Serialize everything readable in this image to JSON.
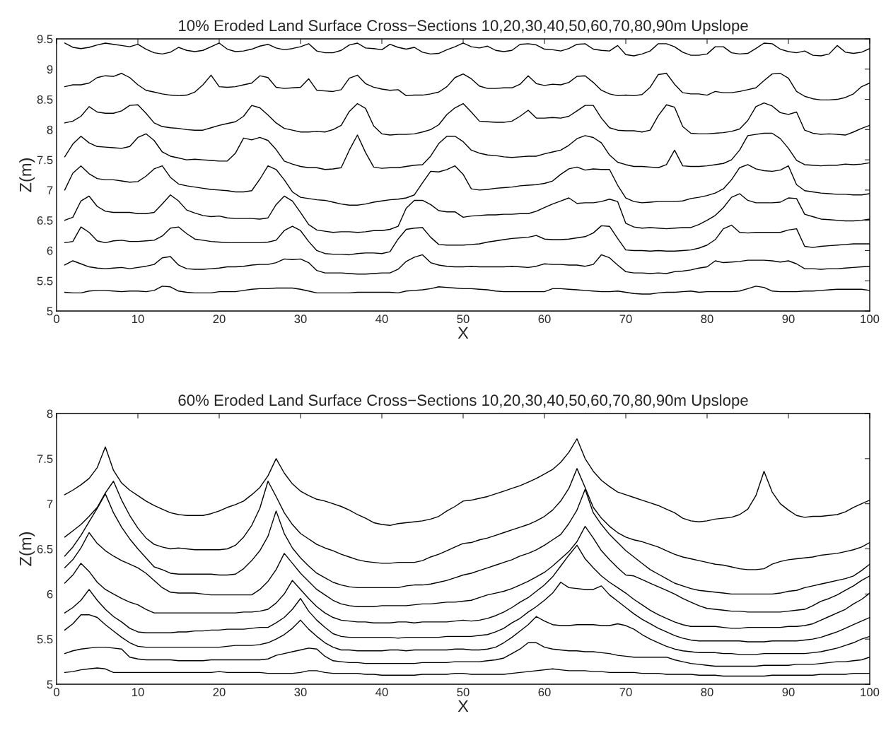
{
  "chart_data": [
    {
      "type": "line",
      "title": "10% Eroded Land Surface Cross−Sections 10,20,30,40,50,60,70,80,90m Upslope",
      "xlabel": "X",
      "ylabel": "Z(m)",
      "x": [
        1,
        2,
        3,
        4,
        5,
        6,
        7,
        8,
        9,
        10,
        11,
        12,
        13,
        14,
        15,
        16,
        17,
        18,
        19,
        20,
        21,
        22,
        23,
        24,
        25,
        26,
        27,
        28,
        29,
        30,
        31,
        32,
        33,
        34,
        35,
        36,
        37,
        38,
        39,
        40,
        41,
        42,
        43,
        44,
        45,
        46,
        47,
        48,
        49,
        50,
        51,
        52,
        53,
        54,
        55,
        56,
        57,
        58,
        59,
        60,
        61,
        62,
        63,
        64,
        65,
        66,
        67,
        68,
        69,
        70,
        71,
        72,
        73,
        74,
        75,
        76,
        77,
        78,
        79,
        80,
        81,
        82,
        83,
        84,
        85,
        86,
        87,
        88,
        89,
        90,
        91,
        92,
        93,
        94,
        95,
        96,
        97,
        98,
        99,
        100
      ],
      "xlim": [
        0,
        100
      ],
      "xticks": [
        0,
        10,
        20,
        30,
        40,
        50,
        60,
        70,
        80,
        90,
        100
      ],
      "ylim": [
        5,
        9.5
      ],
      "yticks": [
        5,
        5.5,
        6,
        6.5,
        7,
        7.5,
        8,
        8.5,
        9,
        9.5
      ],
      "grid": false,
      "marker": "none",
      "line_style": "solid",
      "series": [
        {
          "color": "#000000",
          "values": [
            9.43,
            9.36,
            9.34,
            9.36,
            9.4,
            9.43,
            9.41,
            9.39,
            9.37,
            9.41,
            9.33,
            9.27,
            9.25,
            9.28,
            9.36,
            9.31,
            9.29,
            9.31,
            9.37,
            9.43,
            9.33,
            9.29,
            9.3,
            9.33,
            9.38,
            9.41,
            9.35,
            9.32,
            9.34,
            9.37,
            9.42,
            9.3,
            9.27,
            9.27,
            9.31,
            9.4,
            9.43,
            9.35,
            9.34,
            9.32,
            9.41,
            9.36,
            9.33,
            9.36,
            9.28,
            9.25,
            9.26,
            9.32,
            9.37,
            9.43,
            9.37,
            9.35,
            9.38,
            9.31,
            9.29,
            9.31,
            9.41,
            9.42,
            9.4,
            9.33,
            9.32,
            9.3,
            9.34,
            9.41,
            9.42,
            9.33,
            9.31,
            9.3,
            9.39,
            9.24,
            9.22,
            9.25,
            9.3,
            9.42,
            9.42,
            9.37,
            9.28,
            9.23,
            9.23,
            9.25,
            9.37,
            9.37,
            9.27,
            9.25,
            9.26,
            9.34,
            9.43,
            9.42,
            9.33,
            9.29,
            9.27,
            9.3,
            9.23,
            9.22,
            9.25,
            9.39,
            9.28,
            9.26,
            9.28,
            9.34
          ]
        },
        {
          "color": "#000000",
          "values": [
            8.71,
            8.74,
            8.74,
            8.77,
            8.86,
            8.89,
            8.88,
            8.93,
            8.86,
            8.74,
            8.65,
            8.62,
            8.59,
            8.57,
            8.56,
            8.57,
            8.62,
            8.74,
            8.9,
            8.71,
            8.7,
            8.71,
            8.74,
            8.77,
            8.89,
            8.86,
            8.7,
            8.68,
            8.69,
            8.7,
            8.84,
            8.65,
            8.64,
            8.63,
            8.66,
            8.85,
            8.9,
            8.76,
            8.7,
            8.67,
            8.65,
            8.66,
            8.56,
            8.57,
            8.57,
            8.59,
            8.62,
            8.71,
            8.86,
            8.92,
            8.84,
            8.72,
            8.68,
            8.68,
            8.69,
            8.69,
            8.75,
            8.89,
            8.76,
            8.73,
            8.75,
            8.74,
            8.78,
            8.88,
            8.89,
            8.78,
            8.65,
            8.59,
            8.56,
            8.57,
            8.56,
            8.58,
            8.7,
            8.91,
            8.93,
            8.75,
            8.61,
            8.59,
            8.59,
            8.57,
            8.63,
            8.61,
            8.61,
            8.63,
            8.66,
            8.69,
            8.81,
            8.92,
            8.93,
            8.85,
            8.63,
            8.55,
            8.51,
            8.49,
            8.49,
            8.5,
            8.53,
            8.59,
            8.71,
            8.77
          ]
        },
        {
          "color": "#000000",
          "values": [
            8.11,
            8.14,
            8.22,
            8.38,
            8.29,
            8.27,
            8.27,
            8.31,
            8.4,
            8.41,
            8.27,
            8.11,
            8.05,
            8.03,
            8.02,
            8.0,
            7.99,
            7.99,
            8.03,
            8.07,
            8.1,
            8.13,
            8.22,
            8.4,
            8.36,
            8.24,
            8.11,
            8.02,
            7.99,
            7.96,
            7.96,
            7.97,
            7.96,
            8.0,
            8.07,
            8.3,
            8.43,
            8.35,
            8.06,
            7.93,
            7.91,
            7.92,
            7.92,
            7.93,
            7.96,
            8.0,
            8.08,
            8.25,
            8.36,
            8.43,
            8.29,
            8.14,
            8.13,
            8.12,
            8.12,
            8.14,
            8.22,
            8.32,
            8.19,
            8.19,
            8.2,
            8.19,
            8.22,
            8.31,
            8.4,
            8.4,
            8.19,
            8.03,
            7.99,
            7.98,
            7.98,
            7.96,
            7.99,
            8.23,
            8.41,
            8.37,
            8.05,
            7.94,
            7.93,
            7.93,
            7.94,
            7.95,
            7.97,
            8.01,
            8.15,
            8.38,
            8.44,
            8.39,
            8.28,
            8.25,
            8.29,
            7.99,
            7.94,
            7.92,
            7.93,
            7.92,
            7.91,
            7.96,
            8.02,
            8.07
          ]
        },
        {
          "color": "#000000",
          "values": [
            7.55,
            7.76,
            7.89,
            7.78,
            7.72,
            7.71,
            7.7,
            7.69,
            7.72,
            7.87,
            7.93,
            7.82,
            7.63,
            7.56,
            7.53,
            7.5,
            7.51,
            7.5,
            7.49,
            7.48,
            7.48,
            7.61,
            7.86,
            7.83,
            7.87,
            7.82,
            7.67,
            7.48,
            7.43,
            7.39,
            7.37,
            7.37,
            7.34,
            7.35,
            7.37,
            7.66,
            7.91,
            7.62,
            7.38,
            7.36,
            7.37,
            7.37,
            7.39,
            7.41,
            7.42,
            7.56,
            7.77,
            7.89,
            7.89,
            7.8,
            7.66,
            7.61,
            7.58,
            7.57,
            7.55,
            7.54,
            7.55,
            7.56,
            7.56,
            7.6,
            7.63,
            7.66,
            7.74,
            7.85,
            7.9,
            7.87,
            7.78,
            7.58,
            7.46,
            7.42,
            7.39,
            7.39,
            7.38,
            7.37,
            7.42,
            7.66,
            7.4,
            7.39,
            7.39,
            7.4,
            7.42,
            7.44,
            7.5,
            7.66,
            7.9,
            7.92,
            7.94,
            7.94,
            7.85,
            7.69,
            7.49,
            7.42,
            7.41,
            7.4,
            7.41,
            7.41,
            7.43,
            7.42,
            7.43,
            7.45
          ]
        },
        {
          "color": "#000000",
          "values": [
            7.0,
            7.28,
            7.4,
            7.27,
            7.19,
            7.17,
            7.17,
            7.15,
            7.13,
            7.14,
            7.23,
            7.35,
            7.4,
            7.21,
            7.1,
            7.07,
            7.05,
            7.03,
            7.01,
            7.0,
            6.99,
            6.97,
            6.97,
            6.99,
            7.18,
            7.4,
            7.34,
            7.17,
            6.97,
            6.88,
            6.86,
            6.84,
            6.83,
            6.8,
            6.77,
            6.75,
            6.75,
            6.77,
            6.8,
            6.82,
            6.84,
            6.85,
            6.87,
            6.92,
            7.12,
            7.31,
            7.3,
            7.34,
            7.4,
            7.26,
            7.02,
            7.0,
            7.01,
            7.03,
            7.04,
            7.05,
            7.07,
            7.08,
            7.09,
            7.11,
            7.15,
            7.26,
            7.35,
            7.38,
            7.33,
            7.35,
            7.34,
            7.34,
            7.08,
            6.87,
            6.81,
            6.79,
            6.8,
            6.81,
            6.81,
            6.81,
            6.82,
            6.86,
            6.88,
            6.91,
            6.95,
            7.02,
            7.17,
            7.37,
            7.42,
            7.35,
            7.32,
            7.31,
            7.33,
            7.4,
            7.09,
            6.99,
            6.97,
            6.95,
            6.94,
            6.93,
            6.93,
            6.92,
            6.92,
            6.94
          ]
        },
        {
          "color": "#000000",
          "values": [
            6.5,
            6.55,
            6.82,
            6.9,
            6.73,
            6.65,
            6.63,
            6.63,
            6.63,
            6.61,
            6.61,
            6.63,
            6.77,
            6.92,
            6.82,
            6.67,
            6.62,
            6.58,
            6.56,
            6.57,
            6.54,
            6.53,
            6.53,
            6.53,
            6.52,
            6.54,
            6.76,
            6.9,
            6.82,
            6.63,
            6.43,
            6.34,
            6.32,
            6.3,
            6.31,
            6.31,
            6.3,
            6.31,
            6.33,
            6.33,
            6.35,
            6.4,
            6.7,
            6.83,
            6.83,
            6.76,
            6.66,
            6.64,
            6.64,
            6.55,
            6.57,
            6.58,
            6.59,
            6.59,
            6.6,
            6.6,
            6.61,
            6.61,
            6.65,
            6.71,
            6.77,
            6.82,
            6.87,
            6.78,
            6.79,
            6.79,
            6.81,
            6.85,
            6.81,
            6.45,
            6.39,
            6.37,
            6.38,
            6.37,
            6.36,
            6.37,
            6.38,
            6.38,
            6.43,
            6.5,
            6.58,
            6.71,
            6.88,
            6.94,
            6.83,
            6.79,
            6.79,
            6.79,
            6.8,
            6.87,
            6.86,
            6.6,
            6.56,
            6.52,
            6.51,
            6.5,
            6.49,
            6.49,
            6.5,
            6.52
          ]
        },
        {
          "color": "#000000",
          "values": [
            6.13,
            6.15,
            6.39,
            6.3,
            6.16,
            6.13,
            6.16,
            6.17,
            6.15,
            6.15,
            6.16,
            6.17,
            6.24,
            6.37,
            6.39,
            6.28,
            6.19,
            6.17,
            6.15,
            6.14,
            6.13,
            6.13,
            6.13,
            6.13,
            6.13,
            6.14,
            6.17,
            6.33,
            6.4,
            6.33,
            6.15,
            6.0,
            5.95,
            5.94,
            5.94,
            5.93,
            5.95,
            5.96,
            5.96,
            5.95,
            5.98,
            6.19,
            6.35,
            6.37,
            6.38,
            6.22,
            6.1,
            6.09,
            6.09,
            6.09,
            6.1,
            6.11,
            6.14,
            6.16,
            6.18,
            6.2,
            6.21,
            6.22,
            6.25,
            6.19,
            6.18,
            6.18,
            6.19,
            6.21,
            6.23,
            6.29,
            6.41,
            6.4,
            6.2,
            6.01,
            6.0,
            6.0,
            5.99,
            6.0,
            5.99,
            5.99,
            6.0,
            6.01,
            6.04,
            6.09,
            6.18,
            6.36,
            6.42,
            6.3,
            6.29,
            6.3,
            6.3,
            6.3,
            6.3,
            6.34,
            6.36,
            6.07,
            6.05,
            6.07,
            6.08,
            6.09,
            6.1,
            6.11,
            6.11,
            6.11
          ]
        },
        {
          "color": "#000000",
          "values": [
            5.76,
            5.83,
            5.78,
            5.73,
            5.71,
            5.7,
            5.71,
            5.72,
            5.7,
            5.72,
            5.74,
            5.77,
            5.88,
            5.9,
            5.76,
            5.7,
            5.69,
            5.69,
            5.7,
            5.71,
            5.73,
            5.73,
            5.74,
            5.76,
            5.77,
            5.77,
            5.8,
            5.86,
            5.85,
            5.86,
            5.8,
            5.67,
            5.63,
            5.63,
            5.63,
            5.62,
            5.61,
            5.61,
            5.62,
            5.63,
            5.63,
            5.69,
            5.82,
            5.89,
            5.93,
            5.8,
            5.76,
            5.74,
            5.73,
            5.73,
            5.74,
            5.73,
            5.73,
            5.73,
            5.73,
            5.74,
            5.73,
            5.72,
            5.74,
            5.78,
            5.77,
            5.77,
            5.76,
            5.76,
            5.74,
            5.77,
            5.93,
            5.88,
            5.76,
            5.65,
            5.63,
            5.63,
            5.62,
            5.63,
            5.62,
            5.65,
            5.66,
            5.68,
            5.71,
            5.73,
            5.83,
            5.8,
            5.81,
            5.82,
            5.84,
            5.84,
            5.84,
            5.83,
            5.81,
            5.83,
            5.78,
            5.7,
            5.7,
            5.69,
            5.7,
            5.7,
            5.71,
            5.72,
            5.73,
            5.74
          ]
        },
        {
          "color": "#000000",
          "values": [
            5.31,
            5.3,
            5.3,
            5.33,
            5.34,
            5.34,
            5.33,
            5.32,
            5.33,
            5.33,
            5.32,
            5.34,
            5.41,
            5.4,
            5.33,
            5.31,
            5.3,
            5.3,
            5.3,
            5.32,
            5.32,
            5.32,
            5.34,
            5.36,
            5.37,
            5.37,
            5.38,
            5.38,
            5.38,
            5.36,
            5.33,
            5.3,
            5.3,
            5.3,
            5.3,
            5.3,
            5.31,
            5.31,
            5.31,
            5.31,
            5.31,
            5.3,
            5.33,
            5.34,
            5.35,
            5.37,
            5.4,
            5.39,
            5.38,
            5.37,
            5.37,
            5.36,
            5.35,
            5.33,
            5.32,
            5.32,
            5.32,
            5.32,
            5.32,
            5.32,
            5.37,
            5.37,
            5.36,
            5.35,
            5.34,
            5.33,
            5.32,
            5.32,
            5.33,
            5.31,
            5.29,
            5.28,
            5.28,
            5.3,
            5.31,
            5.31,
            5.32,
            5.33,
            5.31,
            5.32,
            5.32,
            5.32,
            5.32,
            5.33,
            5.37,
            5.41,
            5.39,
            5.33,
            5.32,
            5.32,
            5.32,
            5.33,
            5.33,
            5.34,
            5.35,
            5.36,
            5.36,
            5.36,
            5.36,
            5.34
          ]
        }
      ]
    },
    {
      "type": "line",
      "title": "60% Eroded Land Surface Cross−Sections 10,20,30,40,50,60,70,80,90m Upslope",
      "xlabel": "X",
      "ylabel": "Z(m)",
      "x": [
        1,
        2,
        3,
        4,
        5,
        6,
        7,
        8,
        9,
        10,
        11,
        12,
        13,
        14,
        15,
        16,
        17,
        18,
        19,
        20,
        21,
        22,
        23,
        24,
        25,
        26,
        27,
        28,
        29,
        30,
        31,
        32,
        33,
        34,
        35,
        36,
        37,
        38,
        39,
        40,
        41,
        42,
        43,
        44,
        45,
        46,
        47,
        48,
        49,
        50,
        51,
        52,
        53,
        54,
        55,
        56,
        57,
        58,
        59,
        60,
        61,
        62,
        63,
        64,
        65,
        66,
        67,
        68,
        69,
        70,
        71,
        72,
        73,
        74,
        75,
        76,
        77,
        78,
        79,
        80,
        81,
        82,
        83,
        84,
        85,
        86,
        87,
        88,
        89,
        90,
        91,
        92,
        93,
        94,
        95,
        96,
        97,
        98,
        99,
        100
      ],
      "xlim": [
        0,
        100
      ],
      "xticks": [
        0,
        10,
        20,
        30,
        40,
        50,
        60,
        70,
        80,
        90,
        100
      ],
      "ylim": [
        5,
        8
      ],
      "yticks": [
        5,
        5.5,
        6,
        6.5,
        7,
        7.5,
        8
      ],
      "grid": false,
      "marker": "none",
      "line_style": "solid",
      "series": [
        {
          "color": "#000000",
          "values": [
            7.1,
            7.15,
            7.21,
            7.28,
            7.4,
            7.63,
            7.37,
            7.23,
            7.15,
            7.09,
            7.03,
            6.98,
            6.94,
            6.9,
            6.88,
            6.87,
            6.87,
            6.87,
            6.89,
            6.92,
            6.96,
            6.99,
            7.03,
            7.1,
            7.18,
            7.31,
            7.5,
            7.34,
            7.22,
            7.14,
            7.09,
            7.05,
            7.03,
            7.0,
            6.97,
            6.93,
            6.88,
            6.84,
            6.79,
            6.77,
            6.76,
            6.78,
            6.79,
            6.8,
            6.81,
            6.83,
            6.86,
            6.92,
            6.97,
            7.03,
            7.04,
            7.06,
            7.08,
            7.11,
            7.14,
            7.17,
            7.2,
            7.24,
            7.28,
            7.33,
            7.38,
            7.46,
            7.57,
            7.72,
            7.5,
            7.36,
            7.26,
            7.19,
            7.13,
            7.1,
            7.07,
            7.04,
            7.01,
            6.98,
            6.94,
            6.9,
            6.84,
            6.81,
            6.8,
            6.81,
            6.83,
            6.84,
            6.85,
            6.88,
            6.94,
            7.09,
            7.36,
            7.13,
            7.0,
            6.93,
            6.87,
            6.85,
            6.86,
            6.86,
            6.87,
            6.88,
            6.91,
            6.96,
            7.0,
            7.04
          ]
        },
        {
          "color": "#000000",
          "values": [
            6.63,
            6.7,
            6.77,
            6.86,
            6.96,
            7.12,
            7.25,
            7.04,
            6.87,
            6.73,
            6.62,
            6.55,
            6.52,
            6.5,
            6.51,
            6.5,
            6.49,
            6.49,
            6.49,
            6.49,
            6.5,
            6.54,
            6.63,
            6.76,
            6.95,
            7.25,
            7.08,
            6.9,
            6.77,
            6.67,
            6.61,
            6.55,
            6.51,
            6.48,
            6.44,
            6.41,
            6.38,
            6.36,
            6.35,
            6.34,
            6.34,
            6.35,
            6.35,
            6.35,
            6.37,
            6.41,
            6.44,
            6.48,
            6.52,
            6.56,
            6.57,
            6.6,
            6.62,
            6.65,
            6.68,
            6.71,
            6.74,
            6.77,
            6.81,
            6.86,
            6.93,
            7.03,
            7.17,
            7.39,
            7.18,
            6.96,
            6.84,
            6.75,
            6.68,
            6.63,
            6.6,
            6.58,
            6.55,
            6.52,
            6.48,
            6.44,
            6.41,
            6.39,
            6.37,
            6.35,
            6.33,
            6.32,
            6.3,
            6.28,
            6.27,
            6.27,
            6.28,
            6.33,
            6.36,
            6.38,
            6.39,
            6.4,
            6.41,
            6.43,
            6.44,
            6.45,
            6.47,
            6.49,
            6.52,
            6.57
          ]
        },
        {
          "color": "#000000",
          "values": [
            6.42,
            6.52,
            6.65,
            6.8,
            6.95,
            7.11,
            6.9,
            6.74,
            6.61,
            6.5,
            6.4,
            6.3,
            6.27,
            6.23,
            6.22,
            6.22,
            6.22,
            6.22,
            6.22,
            6.21,
            6.21,
            6.22,
            6.28,
            6.37,
            6.48,
            6.64,
            6.92,
            6.67,
            6.51,
            6.4,
            6.31,
            6.23,
            6.18,
            6.13,
            6.1,
            6.08,
            6.07,
            6.07,
            6.07,
            6.07,
            6.07,
            6.07,
            6.09,
            6.1,
            6.1,
            6.11,
            6.13,
            6.15,
            6.18,
            6.21,
            6.23,
            6.26,
            6.29,
            6.32,
            6.35,
            6.38,
            6.42,
            6.45,
            6.49,
            6.54,
            6.6,
            6.66,
            6.78,
            6.93,
            7.16,
            6.9,
            6.77,
            6.66,
            6.57,
            6.48,
            6.41,
            6.34,
            6.27,
            6.22,
            6.17,
            6.12,
            6.09,
            6.06,
            6.04,
            6.03,
            6.02,
            6.01,
            6.0,
            6.0,
            6.0,
            6.0,
            6.0,
            6.0,
            6.01,
            6.03,
            6.04,
            6.07,
            6.09,
            6.11,
            6.13,
            6.15,
            6.17,
            6.2,
            6.26,
            6.33
          ]
        },
        {
          "color": "#000000",
          "values": [
            6.29,
            6.38,
            6.51,
            6.68,
            6.56,
            6.48,
            6.42,
            6.37,
            6.33,
            6.29,
            6.23,
            6.15,
            6.07,
            6.02,
            6.01,
            6.01,
            6.01,
            6.0,
            5.99,
            5.99,
            5.99,
            5.99,
            5.99,
            5.99,
            6.05,
            6.14,
            6.27,
            6.45,
            6.34,
            6.23,
            6.14,
            6.05,
            5.99,
            5.93,
            5.89,
            5.87,
            5.86,
            5.86,
            5.86,
            5.87,
            5.87,
            5.87,
            5.87,
            5.88,
            5.89,
            5.89,
            5.9,
            5.91,
            5.91,
            5.92,
            5.93,
            5.96,
            5.99,
            6.01,
            6.03,
            6.06,
            6.1,
            6.14,
            6.19,
            6.24,
            6.31,
            6.39,
            6.47,
            6.58,
            6.75,
            6.62,
            6.48,
            6.38,
            6.29,
            6.21,
            6.2,
            6.16,
            6.12,
            6.08,
            6.04,
            6.0,
            5.95,
            5.91,
            5.87,
            5.84,
            5.83,
            5.82,
            5.81,
            5.81,
            5.8,
            5.8,
            5.8,
            5.8,
            5.8,
            5.81,
            5.82,
            5.83,
            5.87,
            5.92,
            5.95,
            5.99,
            6.04,
            6.09,
            6.15,
            6.2
          ]
        },
        {
          "color": "#000000",
          "values": [
            6.12,
            6.21,
            6.34,
            6.25,
            6.13,
            6.05,
            6.0,
            5.95,
            5.91,
            5.88,
            5.83,
            5.79,
            5.79,
            5.79,
            5.79,
            5.79,
            5.79,
            5.79,
            5.79,
            5.79,
            5.79,
            5.79,
            5.8,
            5.8,
            5.81,
            5.83,
            5.9,
            6.0,
            6.15,
            6.05,
            5.95,
            5.86,
            5.79,
            5.74,
            5.71,
            5.7,
            5.69,
            5.69,
            5.68,
            5.68,
            5.68,
            5.69,
            5.69,
            5.68,
            5.69,
            5.69,
            5.69,
            5.69,
            5.7,
            5.71,
            5.7,
            5.71,
            5.73,
            5.76,
            5.8,
            5.85,
            5.91,
            5.96,
            6.03,
            6.1,
            6.19,
            6.31,
            6.43,
            6.54,
            6.39,
            6.29,
            6.2,
            6.13,
            6.07,
            6.01,
            5.94,
            5.88,
            5.82,
            5.77,
            5.73,
            5.69,
            5.66,
            5.64,
            5.64,
            5.64,
            5.64,
            5.63,
            5.62,
            5.62,
            5.63,
            5.63,
            5.63,
            5.63,
            5.63,
            5.64,
            5.64,
            5.65,
            5.67,
            5.71,
            5.75,
            5.79,
            5.83,
            5.89,
            5.94,
            6.01
          ]
        },
        {
          "color": "#000000",
          "values": [
            5.79,
            5.85,
            5.93,
            6.05,
            5.93,
            5.83,
            5.75,
            5.69,
            5.62,
            5.58,
            5.57,
            5.57,
            5.57,
            5.57,
            5.58,
            5.58,
            5.59,
            5.59,
            5.6,
            5.6,
            5.61,
            5.61,
            5.61,
            5.62,
            5.63,
            5.63,
            5.68,
            5.74,
            5.83,
            5.95,
            5.81,
            5.71,
            5.63,
            5.56,
            5.53,
            5.52,
            5.52,
            5.52,
            5.52,
            5.52,
            5.52,
            5.51,
            5.52,
            5.52,
            5.52,
            5.52,
            5.52,
            5.53,
            5.53,
            5.53,
            5.53,
            5.54,
            5.55,
            5.58,
            5.62,
            5.68,
            5.73,
            5.8,
            5.86,
            5.93,
            6.01,
            6.13,
            6.07,
            6.06,
            6.05,
            6.05,
            6.09,
            5.99,
            5.92,
            5.85,
            5.78,
            5.72,
            5.67,
            5.62,
            5.58,
            5.54,
            5.51,
            5.49,
            5.48,
            5.48,
            5.48,
            5.48,
            5.48,
            5.48,
            5.47,
            5.47,
            5.47,
            5.48,
            5.48,
            5.48,
            5.48,
            5.49,
            5.5,
            5.52,
            5.55,
            5.58,
            5.62,
            5.66,
            5.7,
            5.74
          ]
        },
        {
          "color": "#000000",
          "values": [
            5.6,
            5.67,
            5.77,
            5.77,
            5.74,
            5.66,
            5.59,
            5.52,
            5.46,
            5.42,
            5.41,
            5.41,
            5.41,
            5.41,
            5.41,
            5.41,
            5.41,
            5.41,
            5.41,
            5.41,
            5.42,
            5.43,
            5.43,
            5.43,
            5.44,
            5.46,
            5.5,
            5.55,
            5.62,
            5.71,
            5.61,
            5.53,
            5.46,
            5.41,
            5.38,
            5.38,
            5.37,
            5.37,
            5.37,
            5.37,
            5.38,
            5.38,
            5.37,
            5.38,
            5.38,
            5.38,
            5.38,
            5.38,
            5.39,
            5.39,
            5.38,
            5.38,
            5.39,
            5.41,
            5.46,
            5.52,
            5.59,
            5.66,
            5.75,
            5.7,
            5.66,
            5.65,
            5.65,
            5.66,
            5.66,
            5.66,
            5.65,
            5.65,
            5.67,
            5.65,
            5.61,
            5.55,
            5.5,
            5.46,
            5.42,
            5.39,
            5.37,
            5.36,
            5.35,
            5.35,
            5.35,
            5.34,
            5.34,
            5.33,
            5.33,
            5.33,
            5.34,
            5.34,
            5.34,
            5.34,
            5.34,
            5.34,
            5.35,
            5.36,
            5.38,
            5.4,
            5.43,
            5.46,
            5.5,
            5.53
          ]
        },
        {
          "color": "#000000",
          "values": [
            5.34,
            5.37,
            5.39,
            5.4,
            5.41,
            5.41,
            5.4,
            5.39,
            5.3,
            5.28,
            5.27,
            5.27,
            5.27,
            5.27,
            5.26,
            5.26,
            5.26,
            5.26,
            5.27,
            5.27,
            5.27,
            5.27,
            5.27,
            5.27,
            5.27,
            5.28,
            5.32,
            5.34,
            5.36,
            5.38,
            5.4,
            5.39,
            5.31,
            5.26,
            5.25,
            5.24,
            5.24,
            5.23,
            5.23,
            5.23,
            5.23,
            5.23,
            5.23,
            5.23,
            5.24,
            5.24,
            5.24,
            5.24,
            5.25,
            5.25,
            5.25,
            5.25,
            5.26,
            5.27,
            5.29,
            5.34,
            5.39,
            5.46,
            5.46,
            5.41,
            5.39,
            5.38,
            5.37,
            5.37,
            5.36,
            5.36,
            5.35,
            5.34,
            5.32,
            5.31,
            5.3,
            5.3,
            5.3,
            5.3,
            5.3,
            5.27,
            5.25,
            5.23,
            5.22,
            5.21,
            5.2,
            5.2,
            5.2,
            5.2,
            5.2,
            5.2,
            5.21,
            5.21,
            5.21,
            5.21,
            5.22,
            5.22,
            5.22,
            5.23,
            5.24,
            5.25,
            5.25,
            5.26,
            5.27,
            5.3
          ]
        },
        {
          "color": "#000000",
          "values": [
            5.13,
            5.14,
            5.16,
            5.17,
            5.18,
            5.17,
            5.13,
            5.13,
            5.13,
            5.13,
            5.13,
            5.13,
            5.13,
            5.13,
            5.13,
            5.13,
            5.13,
            5.13,
            5.13,
            5.14,
            5.13,
            5.13,
            5.13,
            5.13,
            5.13,
            5.12,
            5.12,
            5.12,
            5.12,
            5.13,
            5.15,
            5.15,
            5.13,
            5.12,
            5.12,
            5.12,
            5.12,
            5.11,
            5.11,
            5.1,
            5.1,
            5.1,
            5.1,
            5.1,
            5.11,
            5.11,
            5.11,
            5.11,
            5.12,
            5.12,
            5.11,
            5.11,
            5.11,
            5.11,
            5.11,
            5.12,
            5.13,
            5.14,
            5.15,
            5.16,
            5.17,
            5.16,
            5.15,
            5.15,
            5.15,
            5.14,
            5.14,
            5.13,
            5.13,
            5.13,
            5.13,
            5.12,
            5.12,
            5.12,
            5.11,
            5.11,
            5.11,
            5.11,
            5.1,
            5.1,
            5.1,
            5.09,
            5.09,
            5.09,
            5.09,
            5.09,
            5.09,
            5.1,
            5.1,
            5.1,
            5.1,
            5.1,
            5.1,
            5.11,
            5.11,
            5.11,
            5.11,
            5.12,
            5.12,
            5.12
          ]
        }
      ]
    }
  ]
}
